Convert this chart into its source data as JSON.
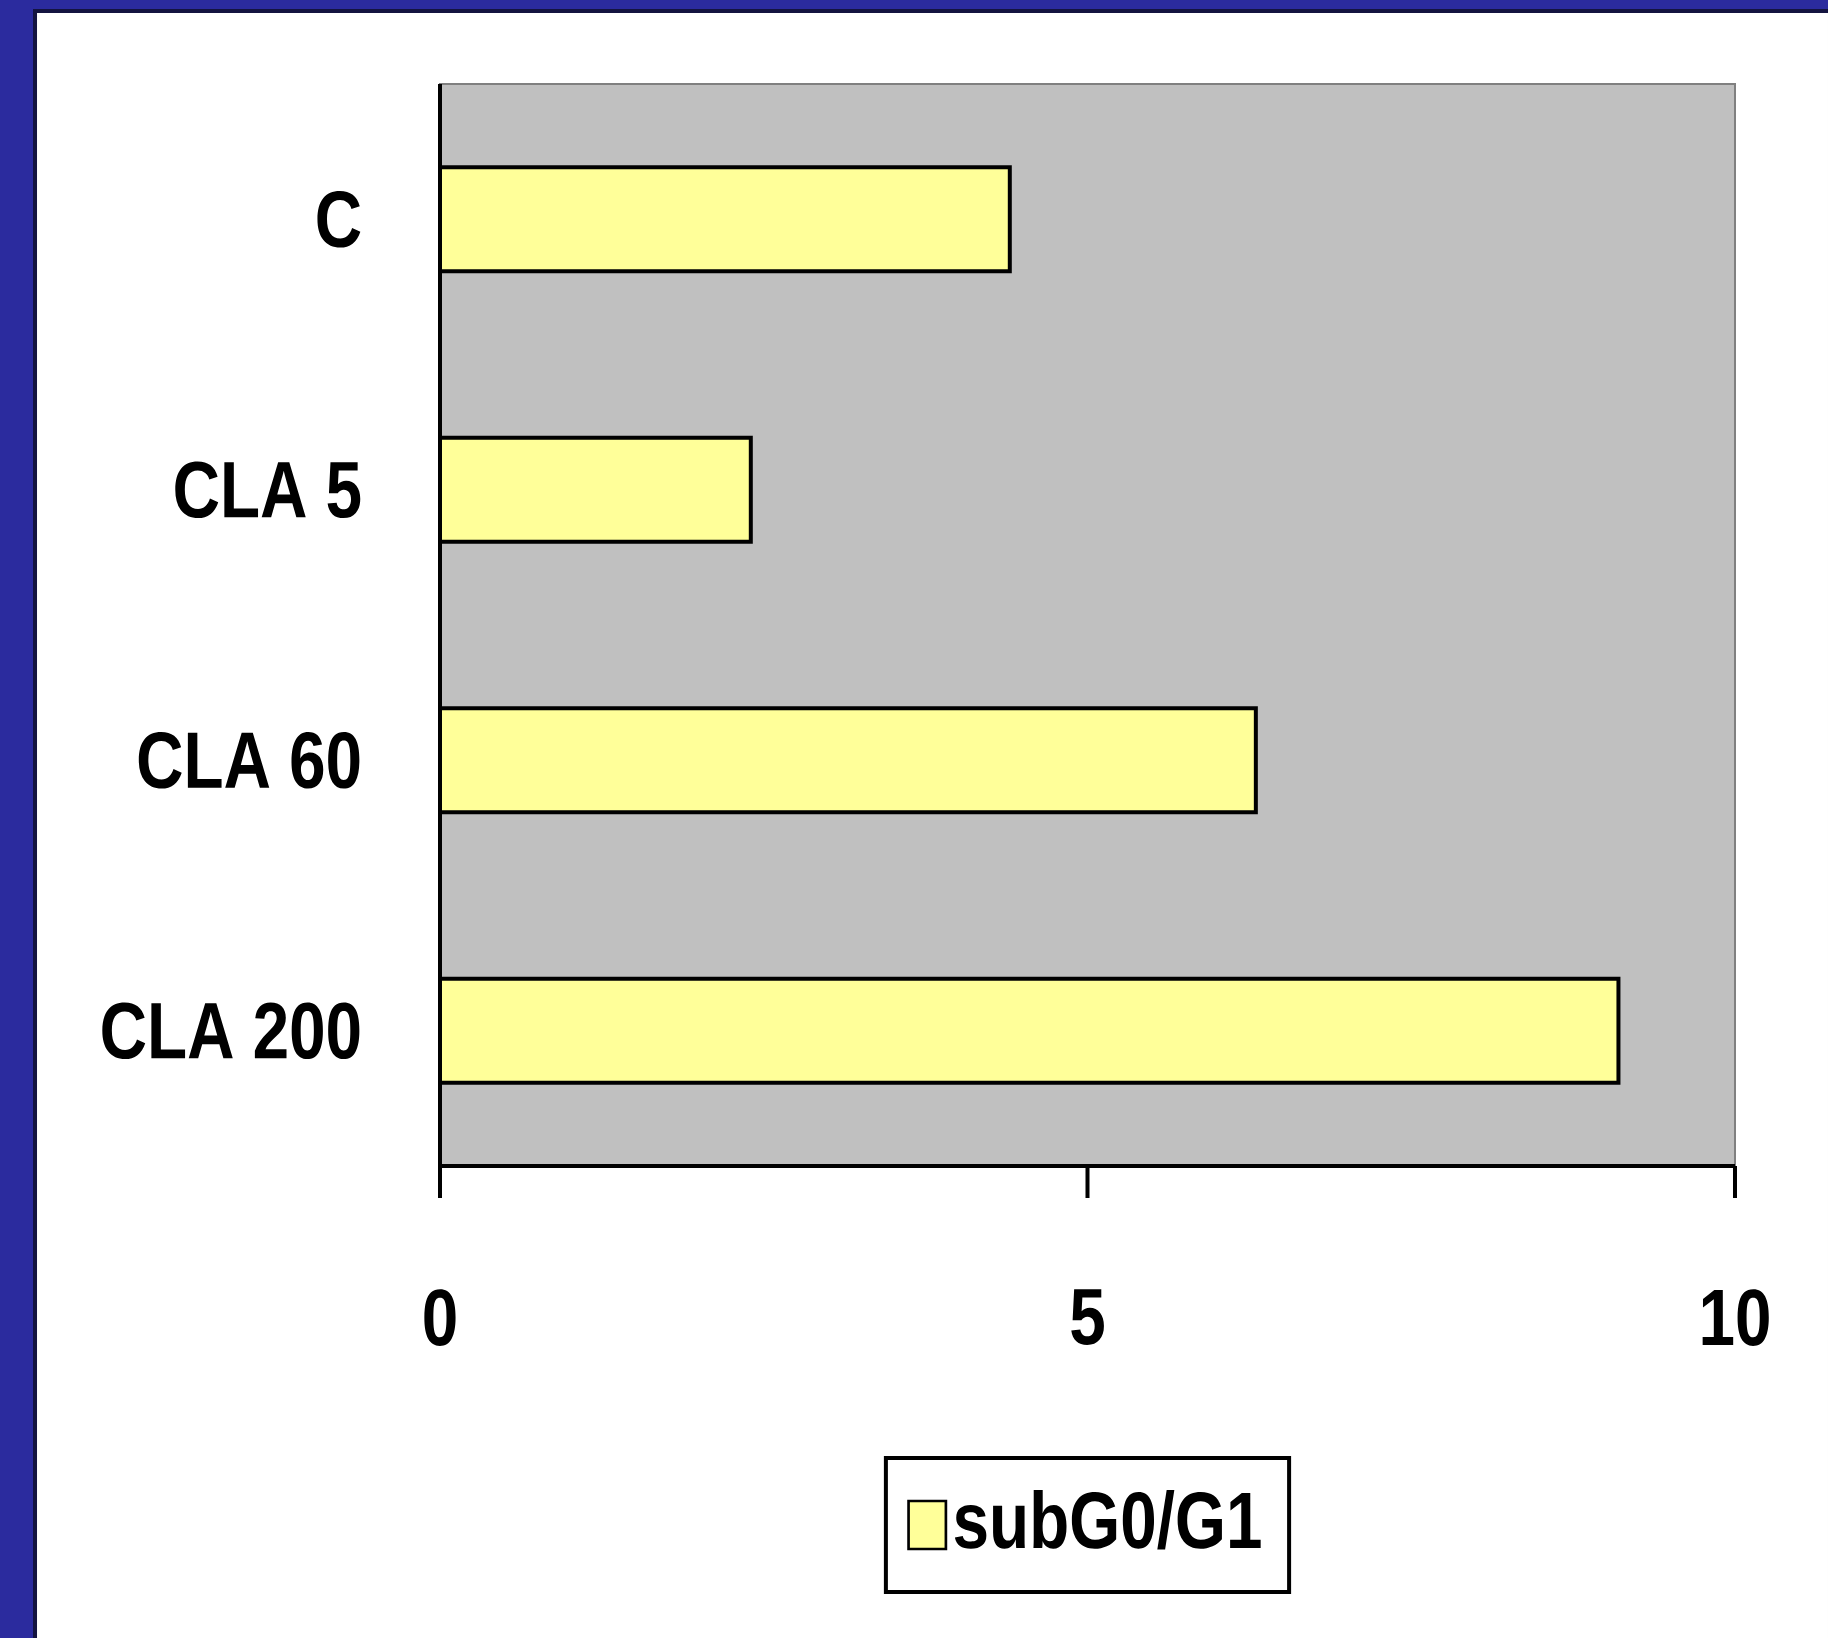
{
  "chart_data": {
    "type": "bar",
    "orientation": "horizontal",
    "categories": [
      "C",
      "CLA 5",
      "CLA 60",
      "CLA 200"
    ],
    "series": [
      {
        "name": "subG0/G1",
        "color": "#ffff99",
        "values": [
          4.4,
          2.4,
          6.3,
          9.1
        ]
      }
    ],
    "xlim": [
      0,
      10
    ],
    "xticks": [
      0,
      5,
      10
    ],
    "legend": "bottom"
  }
}
